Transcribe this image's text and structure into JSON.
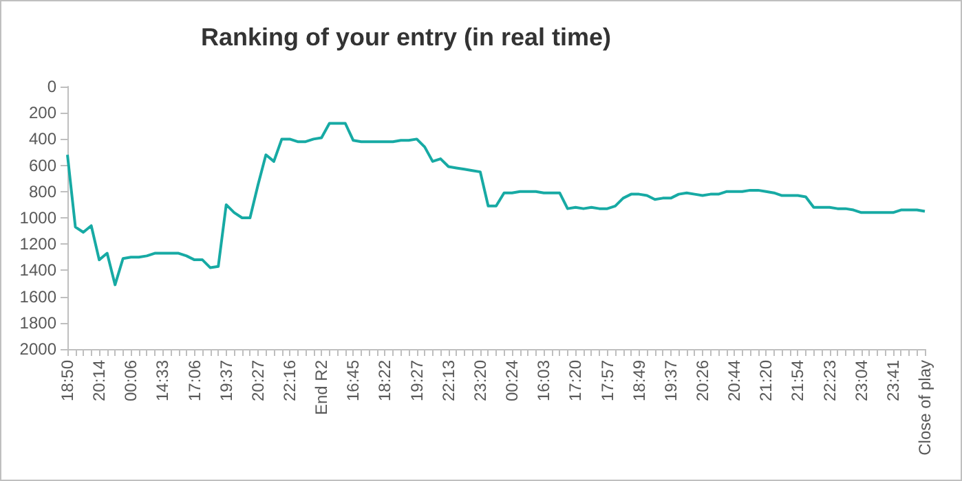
{
  "chart_data": {
    "type": "line",
    "title": "Ranking of your entry (in real time)",
    "categories": [
      "18:50",
      null,
      null,
      null,
      "20:14",
      null,
      null,
      null,
      "00:06",
      null,
      null,
      null,
      "14:33",
      null,
      null,
      null,
      "17:06",
      null,
      null,
      null,
      "19:37",
      null,
      null,
      null,
      "20:27",
      null,
      null,
      null,
      "22:16",
      null,
      null,
      null,
      "End R2",
      null,
      null,
      null,
      "16:45",
      null,
      null,
      null,
      "18:22",
      null,
      null,
      null,
      "19:27",
      null,
      null,
      null,
      "22:13",
      null,
      null,
      null,
      "23:20",
      null,
      null,
      null,
      "00:24",
      null,
      null,
      null,
      "16:03",
      null,
      null,
      null,
      "17:20",
      null,
      null,
      null,
      "17:57",
      null,
      null,
      null,
      "18:49",
      null,
      null,
      null,
      "19:37",
      null,
      null,
      null,
      "20:26",
      null,
      null,
      null,
      "20:44",
      null,
      null,
      null,
      "21:20",
      null,
      null,
      null,
      "21:54",
      null,
      null,
      null,
      "22:23",
      null,
      null,
      null,
      "23:04",
      null,
      null,
      null,
      "23:41",
      null,
      null,
      null,
      "Close of play"
    ],
    "series": [
      {
        "color": "#17aaa4",
        "values": [
          520,
          1070,
          1110,
          1060,
          1320,
          1270,
          1510,
          1310,
          1300,
          1300,
          1290,
          1270,
          1270,
          1270,
          1270,
          1290,
          1320,
          1320,
          1380,
          1370,
          900,
          960,
          1000,
          1000,
          750,
          520,
          570,
          400,
          400,
          420,
          420,
          400,
          390,
          280,
          280,
          280,
          410,
          420,
          420,
          420,
          420,
          420,
          410,
          410,
          400,
          460,
          570,
          550,
          610,
          620,
          630,
          640,
          650,
          910,
          910,
          810,
          810,
          800,
          800,
          800,
          810,
          810,
          810,
          930,
          920,
          930,
          920,
          930,
          930,
          910,
          850,
          820,
          820,
          830,
          860,
          850,
          850,
          820,
          810,
          820,
          830,
          820,
          820,
          800,
          800,
          800,
          790,
          790,
          800,
          810,
          830,
          830,
          830,
          840,
          920,
          920,
          920,
          930,
          930,
          940,
          960,
          960,
          960,
          960,
          960,
          940,
          940,
          940,
          950
        ]
      }
    ],
    "ylim": [
      2000,
      0
    ],
    "yticks": [
      0,
      200,
      400,
      600,
      800,
      {
        "value": 1000,
        "label": "1000"
      },
      {
        "value": 1200,
        "label": "1200"
      },
      {
        "value": 1400,
        "label": "1400"
      },
      {
        "value": 1600,
        "label": "1600"
      },
      {
        "value": 1800,
        "label": "1800"
      },
      {
        "value": 2000,
        "label": "2000"
      }
    ]
  }
}
